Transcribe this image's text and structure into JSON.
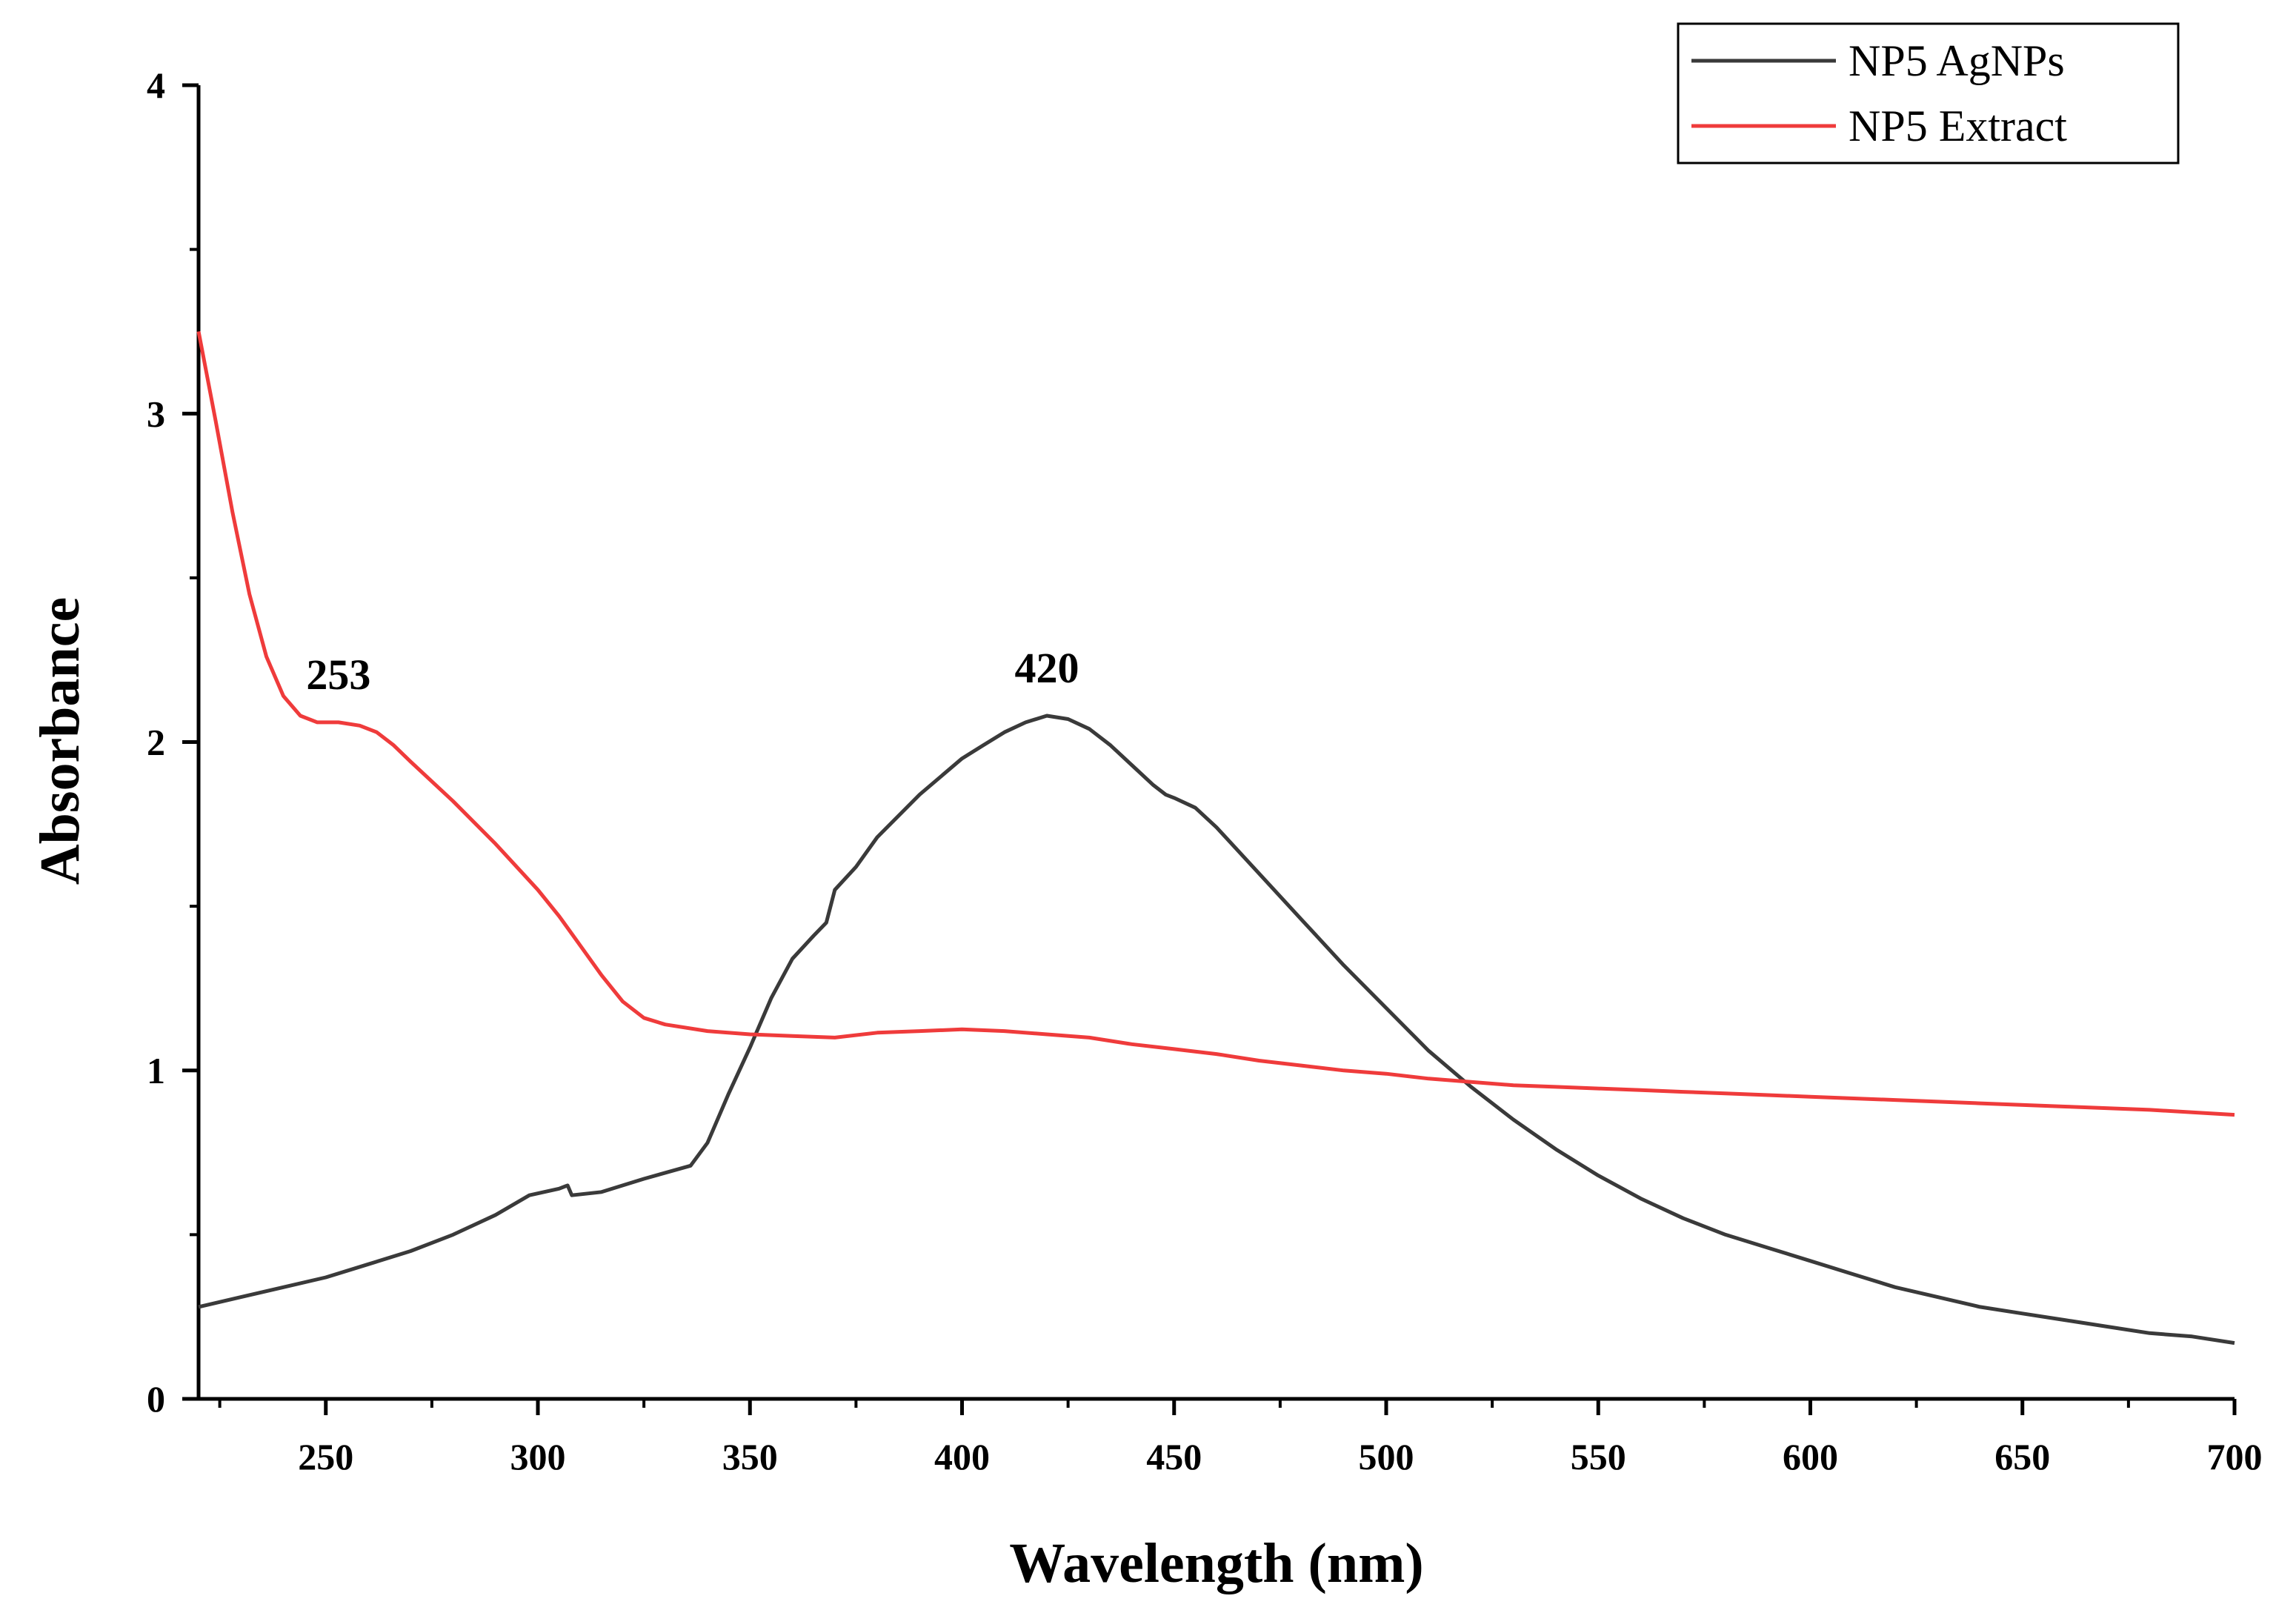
{
  "chart_data": {
    "type": "line",
    "title": "",
    "xlabel": "Wavelength (nm)",
    "ylabel": "Absorbance",
    "xlim": [
      220,
      700
    ],
    "ylim": [
      0,
      4
    ],
    "x_ticks": [
      250,
      300,
      350,
      400,
      450,
      500,
      550,
      600,
      650,
      700
    ],
    "y_ticks": [
      0,
      1,
      2,
      3,
      4
    ],
    "grid": false,
    "legend_position": "top-right",
    "annotations": [
      {
        "text": "253",
        "x": 253,
        "y": 2.06
      },
      {
        "text": "420",
        "x": 420,
        "y": 2.08
      }
    ],
    "series": [
      {
        "name": "NP5 AgNPs",
        "color": "#3a3a3a",
        "points": [
          [
            220,
            0.28
          ],
          [
            230,
            0.31
          ],
          [
            240,
            0.34
          ],
          [
            250,
            0.37
          ],
          [
            260,
            0.41
          ],
          [
            270,
            0.45
          ],
          [
            280,
            0.5
          ],
          [
            290,
            0.56
          ],
          [
            298,
            0.62
          ],
          [
            305,
            0.64
          ],
          [
            307,
            0.65
          ],
          [
            308,
            0.62
          ],
          [
            315,
            0.63
          ],
          [
            325,
            0.67
          ],
          [
            336,
            0.71
          ],
          [
            340,
            0.78
          ],
          [
            345,
            0.93
          ],
          [
            350,
            1.07
          ],
          [
            355,
            1.22
          ],
          [
            360,
            1.34
          ],
          [
            365,
            1.41
          ],
          [
            368,
            1.45
          ],
          [
            370,
            1.55
          ],
          [
            375,
            1.62
          ],
          [
            380,
            1.71
          ],
          [
            390,
            1.84
          ],
          [
            400,
            1.95
          ],
          [
            405,
            1.99
          ],
          [
            410,
            2.03
          ],
          [
            415,
            2.06
          ],
          [
            420,
            2.08
          ],
          [
            425,
            2.07
          ],
          [
            430,
            2.04
          ],
          [
            435,
            1.99
          ],
          [
            440,
            1.93
          ],
          [
            445,
            1.87
          ],
          [
            448,
            1.84
          ],
          [
            450,
            1.83
          ],
          [
            455,
            1.8
          ],
          [
            460,
            1.74
          ],
          [
            470,
            1.6
          ],
          [
            480,
            1.46
          ],
          [
            490,
            1.32
          ],
          [
            500,
            1.19
          ],
          [
            510,
            1.06
          ],
          [
            520,
            0.95
          ],
          [
            530,
            0.85
          ],
          [
            540,
            0.76
          ],
          [
            550,
            0.68
          ],
          [
            560,
            0.61
          ],
          [
            570,
            0.55
          ],
          [
            580,
            0.5
          ],
          [
            590,
            0.46
          ],
          [
            600,
            0.42
          ],
          [
            610,
            0.38
          ],
          [
            620,
            0.34
          ],
          [
            630,
            0.31
          ],
          [
            640,
            0.28
          ],
          [
            650,
            0.26
          ],
          [
            660,
            0.24
          ],
          [
            670,
            0.22
          ],
          [
            680,
            0.2
          ],
          [
            690,
            0.19
          ],
          [
            700,
            0.17
          ]
        ]
      },
      {
        "name": "NP5 Extract",
        "color": "#ef3b3b",
        "points": [
          [
            220,
            3.25
          ],
          [
            224,
            2.98
          ],
          [
            228,
            2.7
          ],
          [
            232,
            2.45
          ],
          [
            236,
            2.26
          ],
          [
            240,
            2.14
          ],
          [
            244,
            2.08
          ],
          [
            248,
            2.06
          ],
          [
            253,
            2.06
          ],
          [
            258,
            2.05
          ],
          [
            262,
            2.03
          ],
          [
            266,
            1.99
          ],
          [
            270,
            1.94
          ],
          [
            280,
            1.82
          ],
          [
            290,
            1.69
          ],
          [
            300,
            1.55
          ],
          [
            305,
            1.47
          ],
          [
            310,
            1.38
          ],
          [
            315,
            1.29
          ],
          [
            320,
            1.21
          ],
          [
            325,
            1.16
          ],
          [
            330,
            1.14
          ],
          [
            340,
            1.12
          ],
          [
            350,
            1.11
          ],
          [
            360,
            1.105
          ],
          [
            370,
            1.1
          ],
          [
            380,
            1.115
          ],
          [
            390,
            1.12
          ],
          [
            400,
            1.125
          ],
          [
            410,
            1.12
          ],
          [
            420,
            1.11
          ],
          [
            430,
            1.1
          ],
          [
            440,
            1.08
          ],
          [
            450,
            1.065
          ],
          [
            460,
            1.05
          ],
          [
            470,
            1.03
          ],
          [
            480,
            1.015
          ],
          [
            490,
            1.0
          ],
          [
            500,
            0.99
          ],
          [
            510,
            0.975
          ],
          [
            520,
            0.965
          ],
          [
            530,
            0.955
          ],
          [
            540,
            0.95
          ],
          [
            550,
            0.945
          ],
          [
            560,
            0.94
          ],
          [
            570,
            0.935
          ],
          [
            580,
            0.93
          ],
          [
            590,
            0.925
          ],
          [
            600,
            0.92
          ],
          [
            620,
            0.91
          ],
          [
            640,
            0.9
          ],
          [
            660,
            0.89
          ],
          [
            680,
            0.88
          ],
          [
            700,
            0.865
          ]
        ]
      }
    ]
  }
}
